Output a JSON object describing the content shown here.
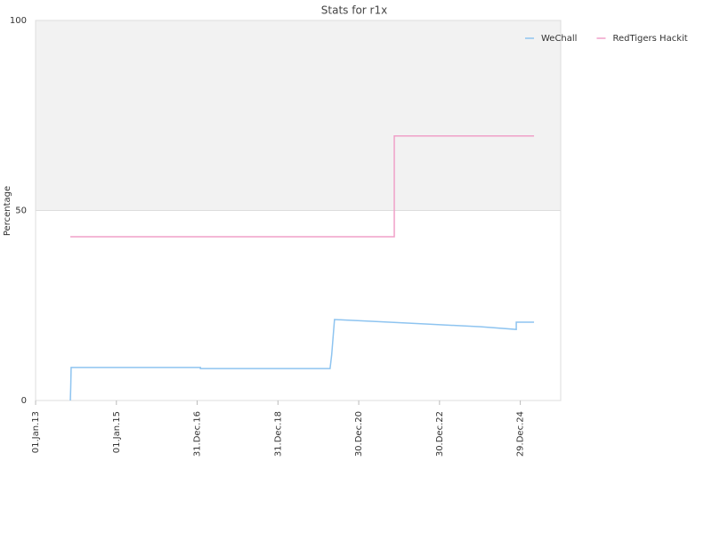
{
  "chart_data": {
    "type": "line",
    "title": "Stats for r1x",
    "y_label": "Percentage",
    "xlim": [
      2013,
      2026
    ],
    "ylim": [
      0,
      100
    ],
    "xticks": [
      {
        "value": 2013,
        "label": "01.Jan.13"
      },
      {
        "value": 2015,
        "label": "01.Jan.15"
      },
      {
        "value": 2017,
        "label": "31.Dec.16"
      },
      {
        "value": 2019,
        "label": "31.Dec.18"
      },
      {
        "value": 2021,
        "label": "30.Dec.20"
      },
      {
        "value": 2023,
        "label": "30.Dec.22"
      },
      {
        "value": 2025,
        "label": "29.Dec.24"
      }
    ],
    "yticks": [
      0,
      50,
      100
    ],
    "bands": [
      {
        "from": 50,
        "to": 100,
        "color": "#f2f2f2"
      }
    ],
    "legend": "upper right",
    "series": [
      {
        "name": "WeChall",
        "color": "#8ec4f0",
        "x": [
          2013.86,
          2013.87,
          2013.88,
          2017.08,
          2017.08,
          2020.29,
          2020.33,
          2020.4,
          2021.37,
          2022.7,
          2024.02,
          2024.9,
          2024.9,
          2025.34
        ],
        "values": [
          0,
          3.5,
          8.7,
          8.7,
          8.4,
          8.4,
          12,
          21.3,
          20.8,
          20.1,
          19.4,
          18.7,
          20.6,
          20.6
        ]
      },
      {
        "name": "RedTigers Hackit",
        "color": "#f0a0c8",
        "x": [
          2013.86,
          2021.88,
          2021.88,
          2025.34
        ],
        "values": [
          43.1,
          43.1,
          69.6,
          69.6
        ]
      }
    ]
  }
}
